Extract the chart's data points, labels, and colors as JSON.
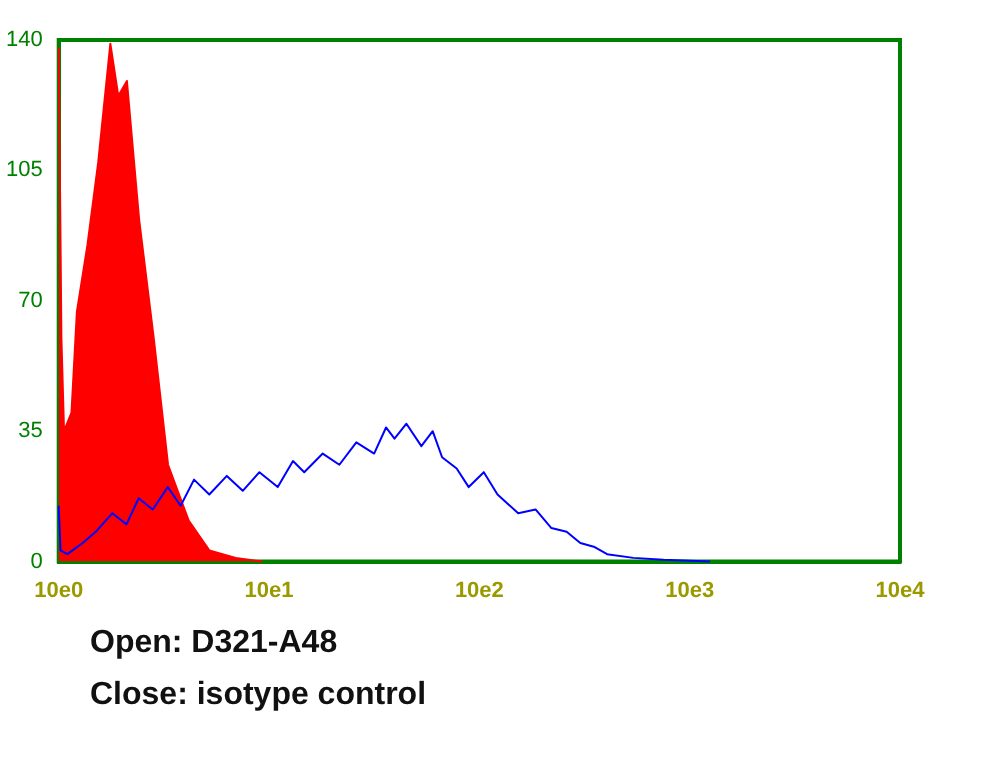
{
  "chart_data": {
    "type": "line",
    "log": "x",
    "xlim": [
      10,
      100000
    ],
    "xticks": [
      {
        "value": 10,
        "label": "10e0"
      },
      {
        "value": 100,
        "label": "10e1"
      },
      {
        "value": 1000,
        "label": "10e2"
      },
      {
        "value": 10000,
        "label": "10e3"
      },
      {
        "value": 100000,
        "label": "10e4"
      }
    ],
    "ylim": [
      0,
      140
    ],
    "yticks": [
      0,
      35,
      70,
      105,
      140
    ],
    "grid": false,
    "legend": false,
    "marker": "none",
    "line_style": "solid",
    "annotations": [
      "Open: D321-A48",
      "Close: isotype control"
    ],
    "series": [
      {
        "type": "area",
        "color": "#ff0000",
        "x": [
          10,
          10.3,
          10.6,
          11.5,
          12.2,
          13.7,
          15.4,
          16.6,
          17.6,
          19.2,
          21.1,
          24.1,
          28.3,
          33.1,
          41.5,
          52,
          69.5,
          93
        ],
        "values": [
          138,
          60,
          35,
          40,
          67,
          85,
          107,
          125,
          139,
          125,
          129,
          92,
          60,
          26,
          11,
          3,
          1,
          0
        ]
      },
      {
        "type": "line",
        "color": "#0000ff",
        "x": [
          10,
          10.2,
          11,
          13,
          15,
          18,
          21,
          24,
          28,
          33,
          38,
          44,
          52,
          63,
          75,
          90,
          110,
          130,
          147,
          180,
          216,
          260,
          316,
          360,
          395,
          450,
          530,
          600,
          665,
          780,
          890,
          1050,
          1220,
          1530,
          1850,
          2200,
          2600,
          3020,
          3500,
          4050,
          5400,
          7500,
          12500
        ],
        "values": [
          15,
          3,
          2,
          5,
          8,
          13,
          10,
          17,
          14,
          20,
          15,
          22,
          18,
          23,
          19,
          24,
          20,
          27,
          24,
          29,
          26,
          32,
          29,
          36,
          33,
          37,
          31,
          35,
          28,
          25,
          20,
          24,
          18,
          13,
          14,
          9,
          8,
          5,
          4,
          2,
          1,
          0.5,
          0
        ]
      }
    ]
  }
}
